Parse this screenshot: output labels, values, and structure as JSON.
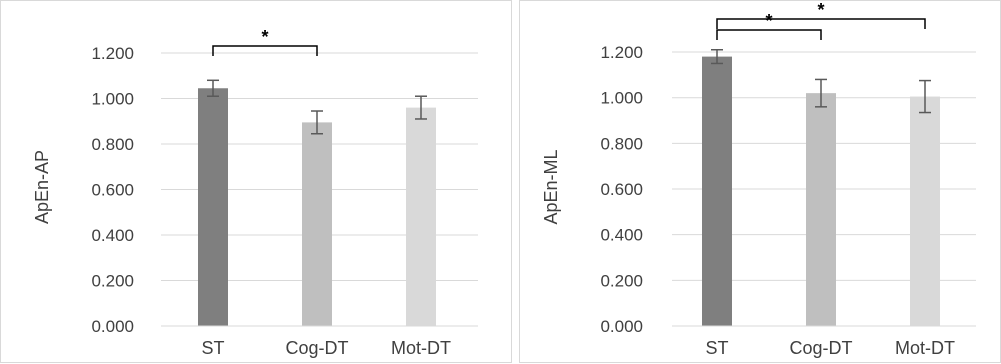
{
  "chart_data": [
    {
      "type": "bar",
      "categories": [
        "ST",
        "Cog-DT",
        "Mot-DT"
      ],
      "values": [
        1.045,
        0.895,
        0.96
      ],
      "error": [
        0.035,
        0.05,
        0.05
      ],
      "ylabel": "ApEn-AP",
      "ylim": [
        0,
        1.2
      ],
      "yticks": [
        "0.000",
        "0.200",
        "0.400",
        "0.600",
        "0.800",
        "1.000",
        "1.200"
      ],
      "grid": true,
      "bar_colors": [
        "#7f7f7f",
        "#bfbfbf",
        "#d9d9d9"
      ],
      "significance": [
        {
          "from": 0,
          "to": 1,
          "label": "*"
        }
      ]
    },
    {
      "type": "bar",
      "categories": [
        "ST",
        "Cog-DT",
        "Mot-DT"
      ],
      "values": [
        1.18,
        1.02,
        1.005
      ],
      "error": [
        0.03,
        0.06,
        0.07
      ],
      "ylabel": "ApEn-ML",
      "ylim": [
        0,
        1.2
      ],
      "yticks": [
        "0.000",
        "0.200",
        "0.400",
        "0.600",
        "0.800",
        "1.000",
        "1.200"
      ],
      "grid": true,
      "bar_colors": [
        "#7f7f7f",
        "#bfbfbf",
        "#d9d9d9"
      ],
      "significance": [
        {
          "from": 0,
          "to": 1,
          "label": "*"
        },
        {
          "from": 0,
          "to": 2,
          "label": "*"
        }
      ]
    }
  ]
}
